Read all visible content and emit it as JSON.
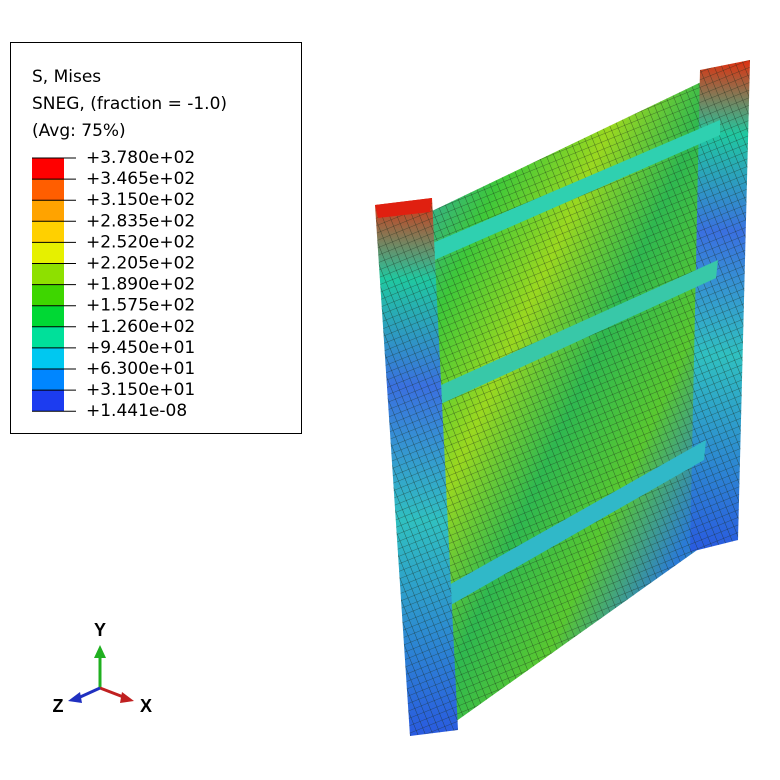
{
  "legend": {
    "title": [
      "S, Mises",
      "SNEG, (fraction = -1.0)",
      "(Avg: 75%)"
    ],
    "labels": [
      "+3.780e+02",
      "+3.465e+02",
      "+3.150e+02",
      "+2.835e+02",
      "+2.520e+02",
      "+2.205e+02",
      "+1.890e+02",
      "+1.575e+02",
      "+1.260e+02",
      "+9.450e+01",
      "+6.300e+01",
      "+3.150e+01",
      "+1.441e-08"
    ],
    "colors": [
      "#ff0000",
      "#ff5e00",
      "#ffa300",
      "#ffd000",
      "#e6f000",
      "#8ee000",
      "#3ed600",
      "#00d834",
      "#00e09a",
      "#00c8f0",
      "#0086ff",
      "#1c3cf0"
    ]
  },
  "triad": {
    "y": "Y",
    "z": "Z",
    "x": "X"
  }
}
